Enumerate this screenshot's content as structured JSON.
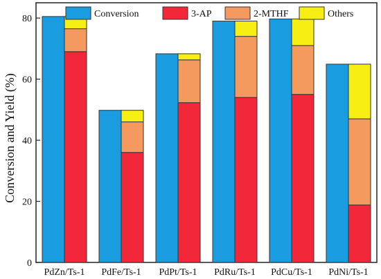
{
  "chart_data": {
    "type": "bar",
    "categories": [
      "PdZn/Ts-1",
      "PdFe/Ts-1",
      "PdPt/Ts-1",
      "PdRu/Ts-1",
      "PdCu/Ts-1",
      "PdNi/Ts-1"
    ],
    "conversion": {
      "name": "Conversion",
      "color": "#1a9ce0",
      "values": [
        80.5,
        49.8,
        68.3,
        79.0,
        79.7,
        64.9
      ]
    },
    "stacked_series": [
      {
        "name": "3-AP",
        "color": "#f2283a",
        "values": [
          69.0,
          36.0,
          52.3,
          54.0,
          55.0,
          18.8
        ]
      },
      {
        "name": "2-MTHF",
        "color": "#f49a5e",
        "values": [
          7.5,
          10.0,
          14.0,
          20.0,
          16.0,
          28.2
        ]
      },
      {
        "name": "Others",
        "color": "#f7ee14",
        "values": [
          4.0,
          3.8,
          2.0,
          5.0,
          8.7,
          17.9
        ]
      }
    ],
    "legend_order": [
      "Conversion",
      "3-AP",
      "2-MTHF",
      "Others"
    ],
    "legend_position": "top",
    "ylabel": "Conversion and Yield (%)",
    "ylim": [
      0,
      85
    ],
    "yticks": [
      0,
      20,
      40,
      60,
      80
    ],
    "grid": false
  }
}
